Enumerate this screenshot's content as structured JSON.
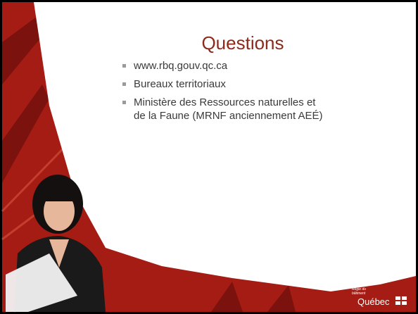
{
  "slide": {
    "title": "Questions",
    "bullets": [
      "www.rbq.gouv.qc.ca",
      "Bureaux territoriaux",
      "Ministère des Ressources naturelles et de la Faune (MRNF anciennement AEÉ)"
    ],
    "logo": {
      "org": "Régie du bâtiment",
      "name": "Québec"
    }
  }
}
